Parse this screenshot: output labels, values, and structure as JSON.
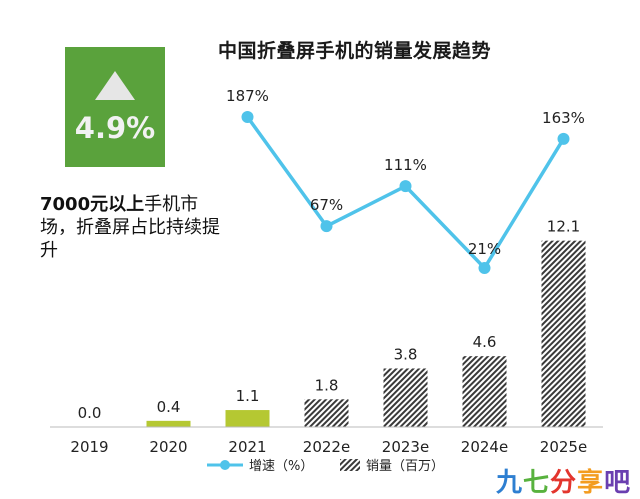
{
  "chart_data": {
    "type": "bar",
    "title": "中国折叠屏手机的销量发展趋势",
    "categories": [
      "2019",
      "2020",
      "2021",
      "2022e",
      "2023e",
      "2024e",
      "2025e"
    ],
    "series": [
      {
        "name": "销量（百万）",
        "type": "bar",
        "values": [
          0.0,
          0.4,
          1.1,
          1.8,
          3.8,
          4.6,
          12.1
        ],
        "labels": [
          "0.0",
          "0.4",
          "1.1",
          "1.8",
          "3.8",
          "4.6",
          "12.1"
        ],
        "colors": [
          "#b5c832",
          "#b5c832",
          "#b5c832",
          "hatched",
          "hatched",
          "hatched",
          "hatched"
        ]
      },
      {
        "name": "增速（%）",
        "type": "line",
        "x": [
          "2021",
          "2022e",
          "2023e",
          "2024e",
          "2025e"
        ],
        "values": [
          187,
          67,
          111,
          21,
          163
        ],
        "labels": [
          "187%",
          "67%",
          "111%",
          "21%",
          "163%"
        ],
        "color": "#4fc3ea"
      }
    ],
    "legend_position": "bottom",
    "grid": false
  },
  "kpi": {
    "value": "4.9%",
    "icon": "up-triangle-icon"
  },
  "note": {
    "bold": "7000元以上",
    "rest": "手机市场，折叠屏占比持续提升"
  },
  "watermark": [
    "九",
    "七",
    "分",
    "享",
    "吧"
  ],
  "colors": {
    "bar_actual": "#b5c832",
    "line": "#4fc3ea",
    "kpi_bg": "#5aa23c"
  }
}
